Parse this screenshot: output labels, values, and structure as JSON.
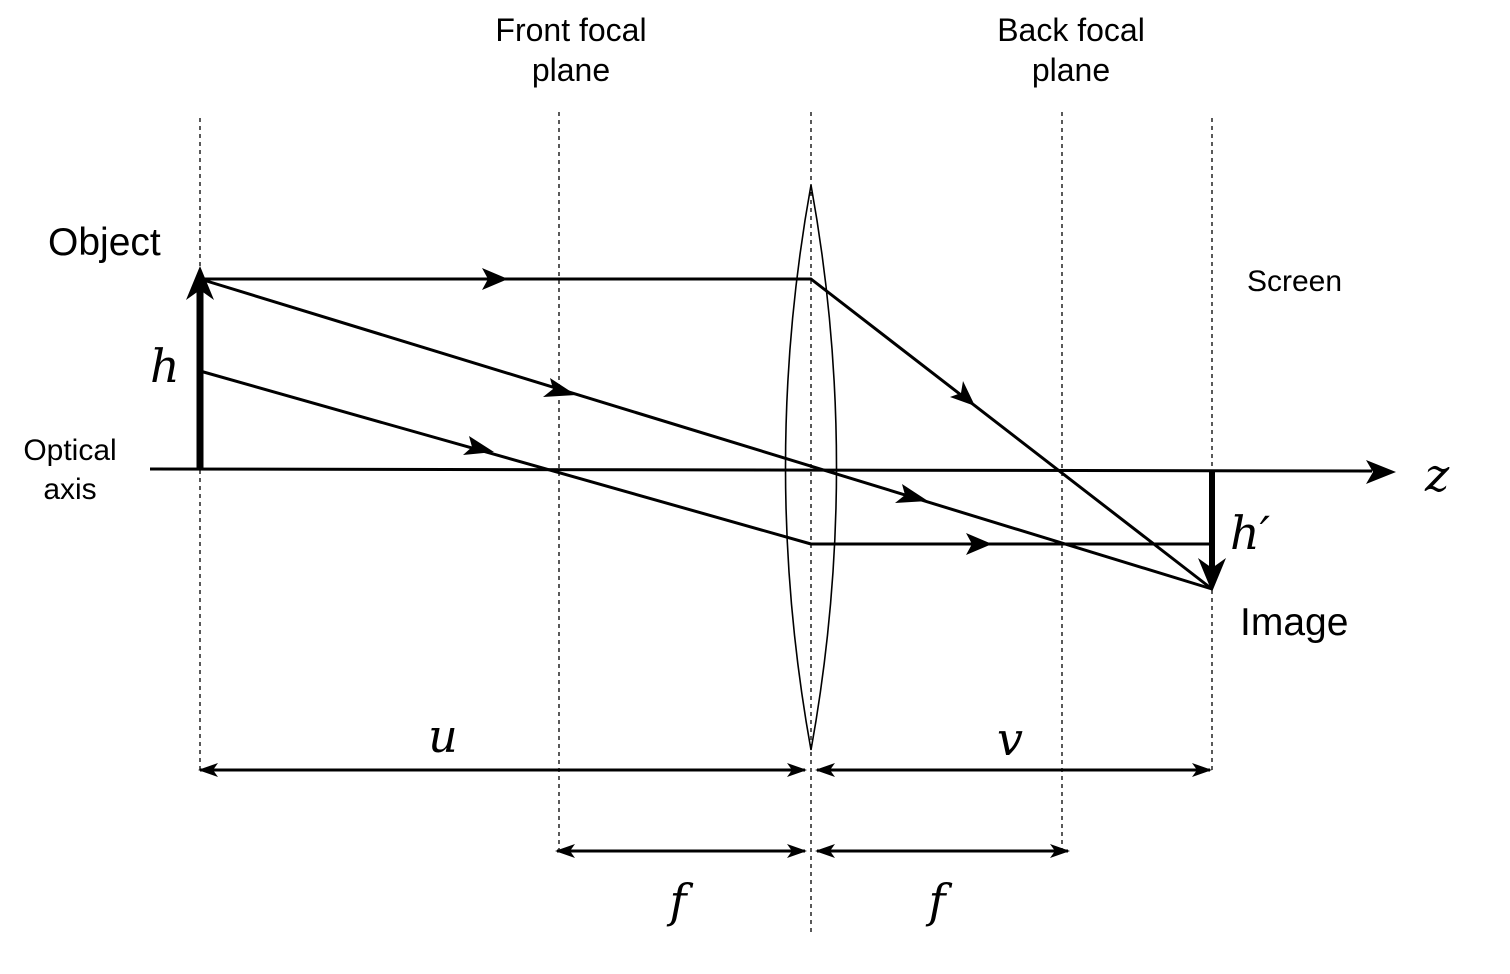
{
  "labels": {
    "front_focal_plane": [
      "Front focal",
      "plane"
    ],
    "back_focal_plane": [
      "Back focal",
      "plane"
    ],
    "object": "Object",
    "screen": "Screen",
    "optical_axis": [
      "Optical",
      "axis"
    ],
    "image": "Image",
    "object_height": "h",
    "image_height": "h′",
    "axis_name": "z",
    "object_distance": "u",
    "image_distance": "v",
    "focal_length_front": "f",
    "focal_length_back": "f"
  }
}
